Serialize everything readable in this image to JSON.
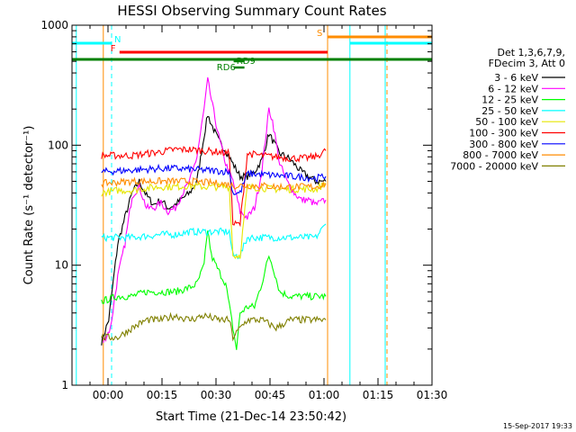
{
  "chart_data": {
    "type": "line",
    "title": "HESSI Observing Summary Count Rates",
    "xlabel": "Start Time (21-Dec-14 23:50:42)",
    "ylabel": "Count Rate (s⁻¹ detector⁻¹)",
    "y_scale": "log",
    "ylim": [
      1,
      1000
    ],
    "xlim_minutes": [
      -0.7,
      99.3
    ],
    "x_ticks": [
      {
        "label": "00:00",
        "minutes": 9.3
      },
      {
        "label": "00:15",
        "minutes": 24.3
      },
      {
        "label": "00:30",
        "minutes": 39.3
      },
      {
        "label": "00:45",
        "minutes": 54.3
      },
      {
        "label": "01:00",
        "minutes": 69.3
      },
      {
        "label": "01:15",
        "minutes": 84.3
      },
      {
        "label": "01:30",
        "minutes": 99.3
      }
    ],
    "y_ticks": [
      {
        "label": "1",
        "value": 1
      },
      {
        "label": "10",
        "value": 10
      },
      {
        "label": "100",
        "value": 100
      },
      {
        "label": "1000",
        "value": 1000
      }
    ],
    "legend_header": [
      "Det 1,3,6,7,9,",
      "FDecim 3, Att 0"
    ],
    "legend_position": "right",
    "series": [
      {
        "name": "3 - 6 keV",
        "color": "#000000",
        "points": [
          [
            7.5,
            2.3
          ],
          [
            9.5,
            3.5
          ],
          [
            12,
            15
          ],
          [
            14,
            25
          ],
          [
            16,
            40
          ],
          [
            18,
            50
          ],
          [
            20,
            38
          ],
          [
            22,
            32
          ],
          [
            24,
            35
          ],
          [
            26,
            30
          ],
          [
            28,
            32
          ],
          [
            30,
            36
          ],
          [
            32,
            40
          ],
          [
            34,
            50
          ],
          [
            36,
            120
          ],
          [
            37,
            180
          ],
          [
            38,
            150
          ],
          [
            40,
            110
          ],
          [
            42,
            90
          ],
          [
            44,
            70
          ],
          [
            46,
            55
          ],
          [
            48,
            55
          ],
          [
            50,
            60
          ],
          [
            52,
            75
          ],
          [
            54,
            125
          ],
          [
            55,
            110
          ],
          [
            57,
            85
          ],
          [
            59,
            80
          ],
          [
            61,
            70
          ],
          [
            63,
            60
          ],
          [
            65,
            55
          ],
          [
            67,
            50
          ],
          [
            69.8,
            50
          ]
        ]
      },
      {
        "name": "6 - 12 keV",
        "color": "#ff00ff",
        "points": [
          [
            8,
            2.3
          ],
          [
            10,
            3
          ],
          [
            12,
            8
          ],
          [
            14,
            15
          ],
          [
            16,
            38
          ],
          [
            18,
            45
          ],
          [
            20,
            30
          ],
          [
            22,
            30
          ],
          [
            24,
            33
          ],
          [
            26,
            28
          ],
          [
            28,
            30
          ],
          [
            30,
            40
          ],
          [
            32,
            50
          ],
          [
            34,
            80
          ],
          [
            36,
            200
          ],
          [
            37,
            350
          ],
          [
            38,
            240
          ],
          [
            40,
            120
          ],
          [
            42,
            70
          ],
          [
            44,
            50
          ],
          [
            46,
            28
          ],
          [
            48,
            25
          ],
          [
            50,
            30
          ],
          [
            52,
            60
          ],
          [
            54,
            200
          ],
          [
            55,
            160
          ],
          [
            57,
            70
          ],
          [
            59,
            50
          ],
          [
            61,
            40
          ],
          [
            63,
            35
          ],
          [
            65,
            35
          ],
          [
            67,
            32
          ],
          [
            69.8,
            35
          ]
        ]
      },
      {
        "name": "12 - 25 keV",
        "color": "#00ff00",
        "points": [
          [
            7.5,
            5
          ],
          [
            12,
            5.5
          ],
          [
            16,
            5.5
          ],
          [
            20,
            6
          ],
          [
            24,
            6
          ],
          [
            28,
            6
          ],
          [
            32,
            6.5
          ],
          [
            34,
            7
          ],
          [
            36,
            10
          ],
          [
            37,
            20
          ],
          [
            38,
            12
          ],
          [
            40,
            9
          ],
          [
            42,
            7
          ],
          [
            44,
            3
          ],
          [
            45,
            2
          ],
          [
            46,
            4
          ],
          [
            48,
            4.5
          ],
          [
            50,
            4.5
          ],
          [
            52,
            7
          ],
          [
            54,
            12
          ],
          [
            55,
            10
          ],
          [
            57,
            6
          ],
          [
            60,
            5.5
          ],
          [
            64,
            5.5
          ],
          [
            69.8,
            5.5
          ]
        ]
      },
      {
        "name": "25 - 50 keV",
        "color": "#00ffff",
        "points": [
          [
            7.5,
            17
          ],
          [
            16,
            17
          ],
          [
            20,
            17.5
          ],
          [
            24,
            18
          ],
          [
            28,
            18
          ],
          [
            32,
            19
          ],
          [
            36,
            19
          ],
          [
            40,
            19
          ],
          [
            43,
            19
          ],
          [
            44,
            12
          ],
          [
            46,
            12
          ],
          [
            48,
            17
          ],
          [
            52,
            17
          ],
          [
            56,
            17
          ],
          [
            60,
            17
          ],
          [
            64,
            17
          ],
          [
            67,
            17
          ],
          [
            69.8,
            22
          ]
        ]
      },
      {
        "name": "50 - 100 keV",
        "color": "#e6e600",
        "points": [
          [
            7.5,
            40
          ],
          [
            12,
            42
          ],
          [
            16,
            42
          ],
          [
            20,
            44
          ],
          [
            24,
            45
          ],
          [
            28,
            45
          ],
          [
            32,
            46
          ],
          [
            36,
            45
          ],
          [
            40,
            45
          ],
          [
            43,
            45
          ],
          [
            44,
            12
          ],
          [
            46,
            12
          ],
          [
            48,
            45
          ],
          [
            52,
            44
          ],
          [
            56,
            43
          ],
          [
            60,
            43
          ],
          [
            64,
            43
          ],
          [
            67,
            43
          ],
          [
            69.8,
            48
          ]
        ]
      },
      {
        "name": "100 - 300 keV",
        "color": "#ff0000",
        "points": [
          [
            7.5,
            82
          ],
          [
            12,
            82
          ],
          [
            16,
            82
          ],
          [
            20,
            85
          ],
          [
            24,
            88
          ],
          [
            28,
            92
          ],
          [
            32,
            92
          ],
          [
            36,
            90
          ],
          [
            40,
            88
          ],
          [
            43,
            85
          ],
          [
            44,
            22
          ],
          [
            46,
            22
          ],
          [
            48,
            85
          ],
          [
            52,
            82
          ],
          [
            56,
            80
          ],
          [
            60,
            78
          ],
          [
            64,
            78
          ],
          [
            67,
            80
          ],
          [
            69.8,
            90
          ]
        ]
      },
      {
        "name": "300 - 800 keV",
        "color": "#0000ff",
        "points": [
          [
            7.5,
            60
          ],
          [
            12,
            61
          ],
          [
            16,
            62
          ],
          [
            20,
            63
          ],
          [
            24,
            64
          ],
          [
            28,
            64
          ],
          [
            32,
            63
          ],
          [
            36,
            62
          ],
          [
            40,
            61
          ],
          [
            43,
            60
          ],
          [
            44,
            40
          ],
          [
            46,
            40
          ],
          [
            48,
            58
          ],
          [
            52,
            57
          ],
          [
            56,
            56
          ],
          [
            60,
            55
          ],
          [
            64,
            54
          ],
          [
            67,
            53
          ],
          [
            69.8,
            55
          ]
        ]
      },
      {
        "name": "800 - 7000 keV",
        "color": "#ff8c00",
        "points": [
          [
            7.5,
            48
          ],
          [
            12,
            49
          ],
          [
            16,
            50
          ],
          [
            20,
            50
          ],
          [
            24,
            50
          ],
          [
            28,
            50
          ],
          [
            32,
            50
          ],
          [
            36,
            49
          ],
          [
            40,
            48
          ],
          [
            43,
            47
          ],
          [
            44,
            46
          ],
          [
            46,
            46
          ],
          [
            48,
            46
          ],
          [
            52,
            46
          ],
          [
            56,
            45
          ],
          [
            60,
            45
          ],
          [
            64,
            45
          ],
          [
            67,
            45
          ],
          [
            69.8,
            48
          ]
        ]
      },
      {
        "name": "7000 - 20000 keV",
        "color": "#808000",
        "points": [
          [
            7.5,
            2.5
          ],
          [
            12,
            2.5
          ],
          [
            16,
            3
          ],
          [
            20,
            3.5
          ],
          [
            24,
            3.5
          ],
          [
            28,
            3.8
          ],
          [
            32,
            3.5
          ],
          [
            36,
            3.8
          ],
          [
            40,
            3.5
          ],
          [
            43,
            3.5
          ],
          [
            44,
            2.5
          ],
          [
            46,
            3
          ],
          [
            48,
            3.5
          ],
          [
            52,
            3.5
          ],
          [
            56,
            3
          ],
          [
            60,
            3.5
          ],
          [
            64,
            3.5
          ],
          [
            67,
            3.5
          ],
          [
            69.8,
            3.5
          ]
        ]
      }
    ],
    "vertical_lines": [
      {
        "minutes": 0.5,
        "color": "#00ffff",
        "style": "solid"
      },
      {
        "minutes": 10.3,
        "color": "#00ffff",
        "style": "dashed"
      },
      {
        "minutes": 8.0,
        "color": "#ff8c00",
        "style": "solid"
      },
      {
        "minutes": 70.3,
        "color": "#ff8c00",
        "style": "solid"
      },
      {
        "minutes": 76.5,
        "color": "#00ffff",
        "style": "solid"
      },
      {
        "minutes": 86.3,
        "color": "#00ffff",
        "style": "solid"
      },
      {
        "minutes": 86.8,
        "color": "#ff8c00",
        "style": "dashed"
      }
    ],
    "state_bars": [
      {
        "label": "N",
        "color": "#00ffff",
        "start": -0.7,
        "end": 10.3,
        "level": 0
      },
      {
        "label": "",
        "color": "#00ffff",
        "start": 76.5,
        "end": 99.3,
        "level": 0
      },
      {
        "label": "S",
        "color": "#ff8c00",
        "start": 70.3,
        "end": 99.3,
        "level": 1
      },
      {
        "label": "F",
        "color": "#ff0000",
        "start": 12.5,
        "end": 70.3,
        "level": 2
      },
      {
        "label": "",
        "color": "#008000",
        "start": -0.7,
        "end": 99.3,
        "level": 3
      }
    ],
    "rd_markers": [
      {
        "label": "RD6",
        "color": "#008000",
        "start": 44.2,
        "end": 47.2,
        "label_minutes": 39.5,
        "row": 1
      },
      {
        "label": "RD9",
        "color": "#008000",
        "start": 44.2,
        "end": 47.2,
        "label_minutes": 45.0,
        "row": 0
      }
    ],
    "footer_stamp": "15-Sep-2017 19:33"
  }
}
